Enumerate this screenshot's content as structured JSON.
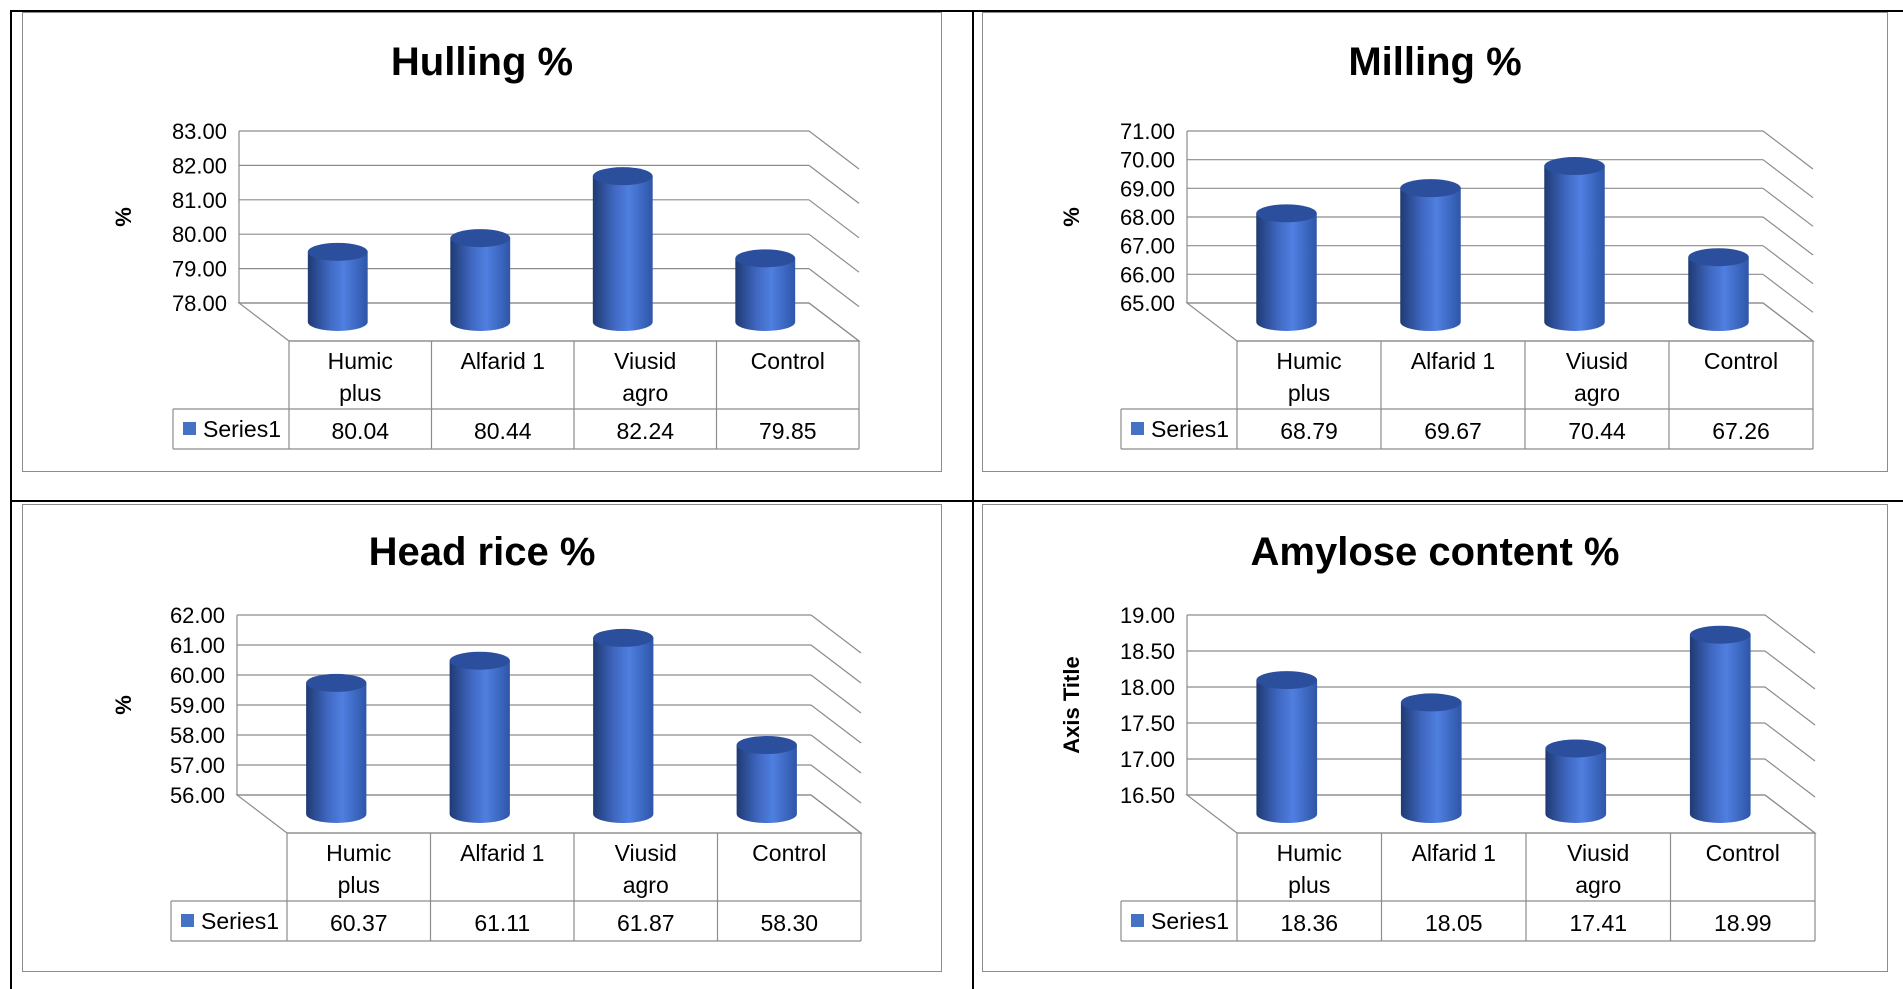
{
  "chart_data": [
    {
      "type": "bar",
      "title": "Hulling %",
      "ylabel": "%",
      "categories": [
        "Humic plus",
        "Alfarid 1",
        "Viusid agro",
        "Control"
      ],
      "series": [
        {
          "name": "Series1",
          "values": [
            80.04,
            80.44,
            82.24,
            79.85
          ]
        }
      ],
      "value_labels": [
        "80.04",
        "80.44",
        "82.24",
        "79.85"
      ],
      "yticks": [
        "78.00",
        "79.00",
        "80.00",
        "81.00",
        "82.00",
        "83.00"
      ],
      "ylim": [
        78,
        83
      ],
      "grid": true,
      "color": "#4472C4"
    },
    {
      "type": "bar",
      "title": "Milling %",
      "ylabel": "%",
      "categories": [
        "Humic plus",
        "Alfarid 1",
        "Viusid agro",
        "Control"
      ],
      "series": [
        {
          "name": "Series1",
          "values": [
            68.79,
            69.67,
            70.44,
            67.26
          ]
        }
      ],
      "value_labels": [
        "68.79",
        "69.67",
        "70.44",
        "67.26"
      ],
      "yticks": [
        "65.00",
        "66.00",
        "67.00",
        "68.00",
        "69.00",
        "70.00",
        "71.00"
      ],
      "ylim": [
        65,
        71
      ],
      "grid": true,
      "color": "#4472C4"
    },
    {
      "type": "bar",
      "title": "Head rice %",
      "ylabel": "%",
      "categories": [
        "Humic plus",
        "Alfarid 1",
        "Viusid agro",
        "Control"
      ],
      "series": [
        {
          "name": "Series1",
          "values": [
            60.37,
            61.11,
            61.87,
            58.3
          ]
        }
      ],
      "value_labels": [
        "60.37",
        "61.11",
        "61.87",
        "58.30"
      ],
      "yticks": [
        "56.00",
        "57.00",
        "58.00",
        "59.00",
        "60.00",
        "61.00",
        "62.00"
      ],
      "ylim": [
        56,
        62
      ],
      "grid": true,
      "color": "#4472C4"
    },
    {
      "type": "bar",
      "title": "Amylose content %",
      "ylabel": "Axis Title",
      "categories": [
        "Humic plus",
        "Alfarid 1",
        "Viusid agro",
        "Control"
      ],
      "series": [
        {
          "name": "Series1",
          "values": [
            18.36,
            18.05,
            17.41,
            18.99
          ]
        }
      ],
      "value_labels": [
        "18.36",
        "18.05",
        "17.41",
        "18.99"
      ],
      "yticks": [
        "16.50",
        "17.00",
        "17.50",
        "18.00",
        "18.50",
        "19.00"
      ],
      "ylim": [
        16.5,
        19
      ],
      "grid": true,
      "color": "#4472C4"
    }
  ]
}
